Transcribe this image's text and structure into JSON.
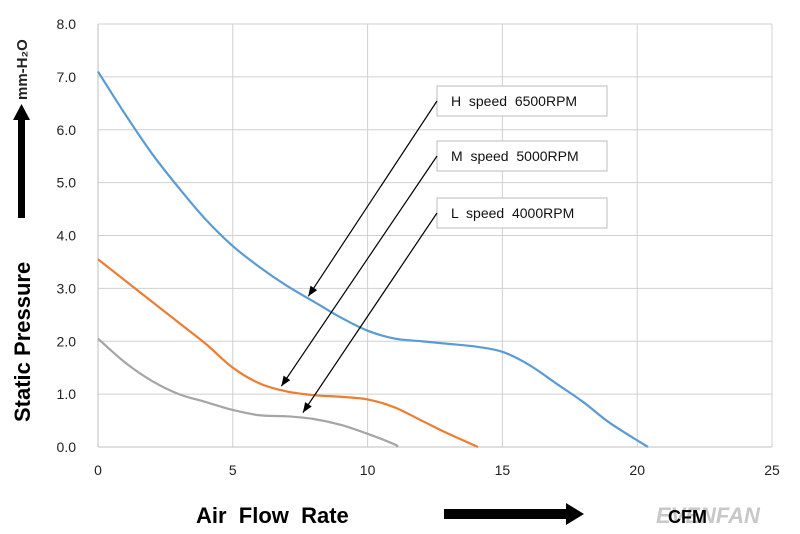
{
  "chart_data": {
    "type": "line",
    "title": "",
    "xlabel": "Air  Flow  Rate",
    "xunit": "CFM",
    "ylabel": "Static   Pressure",
    "yunit": "mm-H₂O",
    "xlim": [
      0,
      25
    ],
    "ylim": [
      0,
      8
    ],
    "xticks": [
      "0",
      "5",
      "10",
      "15",
      "20",
      "25"
    ],
    "yticks": [
      "0.0",
      "1.0",
      "2.0",
      "3.0",
      "4.0",
      "5.0",
      "6.0",
      "7.0",
      "8.0"
    ],
    "grid": true,
    "legend": "none",
    "series": [
      {
        "name": "H  speed  6500RPM",
        "color": "#5b9bd5",
        "points": [
          [
            0,
            7.1
          ],
          [
            1,
            6.3
          ],
          [
            2,
            5.55
          ],
          [
            3,
            4.9
          ],
          [
            4,
            4.3
          ],
          [
            5,
            3.8
          ],
          [
            6,
            3.4
          ],
          [
            7,
            3.05
          ],
          [
            8,
            2.75
          ],
          [
            9,
            2.45
          ],
          [
            10,
            2.2
          ],
          [
            11,
            2.05
          ],
          [
            12,
            2.0
          ],
          [
            13,
            1.95
          ],
          [
            14,
            1.9
          ],
          [
            15,
            1.8
          ],
          [
            16,
            1.55
          ],
          [
            17,
            1.2
          ],
          [
            18,
            0.85
          ],
          [
            19,
            0.45
          ],
          [
            20.4,
            0.0
          ]
        ],
        "label_ref": [
          7.8,
          2.85
        ]
      },
      {
        "name": "M  speed  5000RPM",
        "color": "#ed7d31",
        "points": [
          [
            0,
            3.55
          ],
          [
            1,
            3.15
          ],
          [
            2,
            2.75
          ],
          [
            3,
            2.35
          ],
          [
            4,
            1.95
          ],
          [
            5,
            1.5
          ],
          [
            6,
            1.2
          ],
          [
            7,
            1.05
          ],
          [
            8,
            0.98
          ],
          [
            9,
            0.95
          ],
          [
            10,
            0.9
          ],
          [
            11,
            0.75
          ],
          [
            12,
            0.5
          ],
          [
            13,
            0.25
          ],
          [
            14.1,
            0.0
          ]
        ],
        "label_ref": [
          6.8,
          1.15
        ]
      },
      {
        "name": "L  speed  4000RPM",
        "color": "#a5a5a5",
        "points": [
          [
            0,
            2.05
          ],
          [
            1,
            1.6
          ],
          [
            2,
            1.25
          ],
          [
            3,
            1.0
          ],
          [
            4,
            0.85
          ],
          [
            5,
            0.7
          ],
          [
            6,
            0.6
          ],
          [
            7,
            0.58
          ],
          [
            8,
            0.53
          ],
          [
            9,
            0.42
          ],
          [
            10,
            0.25
          ],
          [
            11,
            0.05
          ],
          [
            11.1,
            0.0
          ]
        ],
        "label_ref": [
          7.6,
          0.65
        ]
      }
    ]
  },
  "watermark": "EVENFAN"
}
